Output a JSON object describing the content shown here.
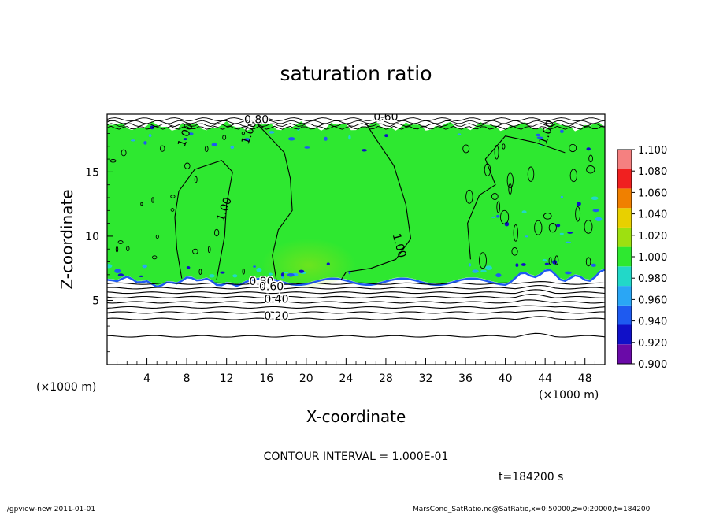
{
  "chart_data": {
    "type": "heatmap",
    "title": "saturation ratio",
    "xlabel": "X-coordinate",
    "ylabel": "Z-coordinate",
    "x_unit_label": "(×1000 m)",
    "y_unit_label": "(×1000 m)",
    "xlim": [
      0,
      50
    ],
    "ylim": [
      0,
      19.5
    ],
    "x_ticks": [
      4,
      8,
      12,
      16,
      20,
      24,
      28,
      32,
      36,
      40,
      44,
      48
    ],
    "y_ticks": [
      5,
      10,
      15
    ],
    "colorbar": {
      "levels": [
        0.9,
        0.92,
        0.94,
        0.96,
        0.98,
        1.0,
        1.02,
        1.04,
        1.06,
        1.08,
        1.1
      ],
      "tick_labels": [
        "0.900",
        "0.920",
        "0.940",
        "0.960",
        "0.980",
        "1.000",
        "1.020",
        "1.040",
        "1.060",
        "1.080",
        "1.100"
      ],
      "colors": [
        "#6a0aa8",
        "#1010c8",
        "#1e5af0",
        "#2aa6f5",
        "#22d8c8",
        "#2ee830",
        "#9ee010",
        "#e8d000",
        "#f08000",
        "#f02020",
        "#f58080"
      ]
    },
    "background_fill": "#2ee830",
    "contour_labels": [
      {
        "text": "1.00",
        "x": 8.2,
        "z": 17.8
      },
      {
        "text": "1.00",
        "x": 14.6,
        "z": 18.0
      },
      {
        "text": "1.00",
        "x": 12.1,
        "z": 12.0
      },
      {
        "text": "1.00",
        "x": 29.0,
        "z": 9.2
      },
      {
        "text": "1.00",
        "x": 44.5,
        "z": 18.0
      },
      {
        "text": "0.80",
        "x": 15.0,
        "z": 18.8
      },
      {
        "text": "0.60",
        "x": 28.0,
        "z": 19.0
      },
      {
        "text": "0.80",
        "x": 15.5,
        "z": 6.2
      },
      {
        "text": "0.60",
        "x": 16.5,
        "z": 5.8
      },
      {
        "text": "0.40",
        "x": 17.0,
        "z": 4.8
      },
      {
        "text": "0.20",
        "x": 17.0,
        "z": 3.5
      }
    ],
    "lower_contours": [
      {
        "level": 0.9,
        "z": 6.3
      },
      {
        "level": 0.8,
        "z": 5.95
      },
      {
        "level": 0.7,
        "z": 5.6
      },
      {
        "level": 0.6,
        "z": 5.25
      },
      {
        "level": 0.5,
        "z": 4.85
      },
      {
        "level": 0.4,
        "z": 4.45
      },
      {
        "level": 0.3,
        "z": 4.05
      },
      {
        "level": 0.2,
        "z": 3.55
      },
      {
        "level": 0.1,
        "z": 2.2
      }
    ],
    "contour_interval_text": "CONTOUR INTERVAL = 1.000E-01",
    "time_label": "t=184200 s"
  },
  "footer": {
    "left": "./gpview-new  2011-01-01",
    "right": "MarsCond_SatRatio.nc@SatRatio,x=0:50000,z=0:20000,t=184200"
  }
}
